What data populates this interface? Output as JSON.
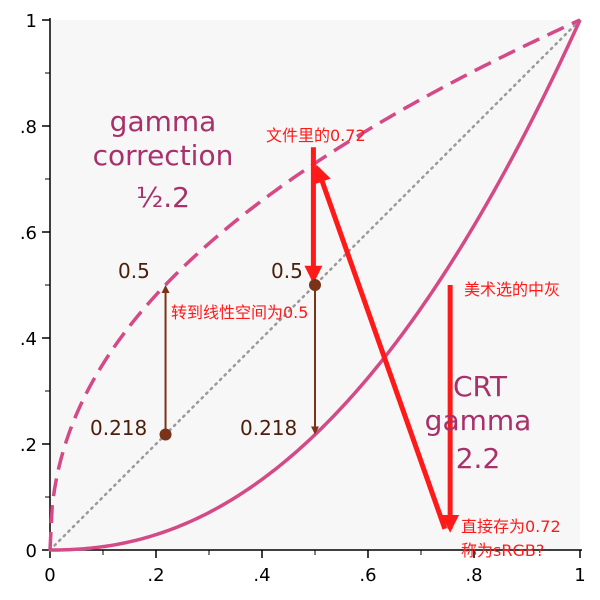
{
  "colors": {
    "curve": "#d44a86",
    "diagonal": "#9a9a9a",
    "brown": "#7a3318",
    "brown_text": "#4a1f0c",
    "red": "#ff1a1a",
    "title_text": "#a8306b",
    "plot_bg": "#f7f7f7"
  },
  "chart_data": {
    "type": "line",
    "xlim": [
      0,
      1
    ],
    "ylim": [
      0,
      1
    ],
    "grid": false,
    "xticks": [
      "0",
      ".2",
      ".4",
      ".6",
      ".8",
      "1"
    ],
    "yticks": [
      "0",
      ".2",
      ".4",
      ".6",
      ".8",
      "1"
    ],
    "series": [
      {
        "function": "y = x^(1/2.2)",
        "style": "dashed",
        "color": "#d44a86"
      },
      {
        "function": "y = x",
        "style": "dotted",
        "color": "#9a9a9a"
      },
      {
        "function": "y = x^2.2",
        "style": "solid",
        "color": "#d44a86"
      }
    ],
    "points": [
      {
        "x": 0.218,
        "y": 0.218
      },
      {
        "x": 0.5,
        "y": 0.5
      }
    ],
    "brown_arrows": [
      {
        "x": 0.218,
        "y_from": 0.218,
        "y_to": 0.5
      },
      {
        "x": 0.5,
        "y_from": 0.5,
        "y_to": 0.218
      }
    ],
    "red_arrows": [
      {
        "x_from": 0.497,
        "y_from": 0.76,
        "x_to": 0.497,
        "y_to": 0.51
      },
      {
        "x_from": 0.755,
        "y_from": 0.5,
        "x_to": 0.755,
        "y_to": 0.04
      },
      {
        "x_from": 0.745,
        "y_from": 0.04,
        "x_to": 0.505,
        "y_to": 0.72
      }
    ],
    "labels": {
      "gamma_correction": [
        "gamma",
        "correction",
        "½.2"
      ],
      "crt_gamma": [
        "CRT",
        "gamma",
        "2.2"
      ],
      "left_top": "0.5",
      "left_bottom": "0.218",
      "mid_top": "0.5",
      "mid_bottom": "0.218"
    },
    "annotations": {
      "file_072": "文件里的0.72",
      "to_linear": "转到线性空间为0.5",
      "art_gray": "美术选的中灰",
      "direct_save_1": "直接存为0.72",
      "direct_save_2": "称为sRGB?"
    }
  }
}
